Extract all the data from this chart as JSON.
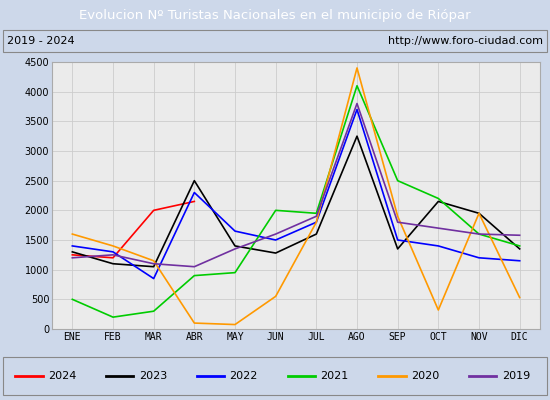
{
  "title": "Evolucion Nº Turistas Nacionales en el municipio de Riópar",
  "subtitle_left": "2019 - 2024",
  "subtitle_right": "http://www.foro-ciudad.com",
  "title_bg_color": "#4472c4",
  "title_text_color": "#ffffff",
  "plot_bg_color": "#ebebeb",
  "fig_bg_color": "#cdd8ea",
  "border_color": "#aaaaaa",
  "months": [
    "ENE",
    "FEB",
    "MAR",
    "ABR",
    "MAY",
    "JUN",
    "JUL",
    "AGO",
    "SEP",
    "OCT",
    "NOV",
    "DIC"
  ],
  "ylim": [
    0,
    4500
  ],
  "yticks": [
    0,
    500,
    1000,
    1500,
    2000,
    2500,
    3000,
    3500,
    4000,
    4500
  ],
  "series": [
    {
      "year": "2024",
      "color": "#ff0000",
      "data": [
        1250,
        1200,
        2000,
        2150,
        null,
        null,
        null,
        null,
        null,
        null,
        null,
        null
      ]
    },
    {
      "year": "2023",
      "color": "#000000",
      "data": [
        1300,
        1100,
        1050,
        2500,
        1400,
        1280,
        1600,
        3250,
        1350,
        2150,
        1950,
        1350
      ]
    },
    {
      "year": "2022",
      "color": "#0000ff",
      "data": [
        1400,
        1300,
        850,
        2300,
        1650,
        1500,
        1800,
        3700,
        1500,
        1400,
        1200,
        1150
      ]
    },
    {
      "year": "2021",
      "color": "#00cc00",
      "data": [
        500,
        200,
        300,
        900,
        950,
        2000,
        1950,
        4100,
        2500,
        2200,
        1600,
        1400
      ]
    },
    {
      "year": "2020",
      "color": "#ff9900",
      "data": [
        1600,
        1400,
        1150,
        100,
        75,
        550,
        1800,
        4400,
        1900,
        320,
        1950,
        530
      ]
    },
    {
      "year": "2019",
      "color": "#7030a0",
      "data": [
        1200,
        1250,
        1100,
        1050,
        1350,
        1600,
        1900,
        3800,
        1800,
        1700,
        1600,
        1580
      ]
    }
  ],
  "legend_fontsize": 8,
  "tick_fontsize": 7,
  "title_fontsize": 9.5
}
